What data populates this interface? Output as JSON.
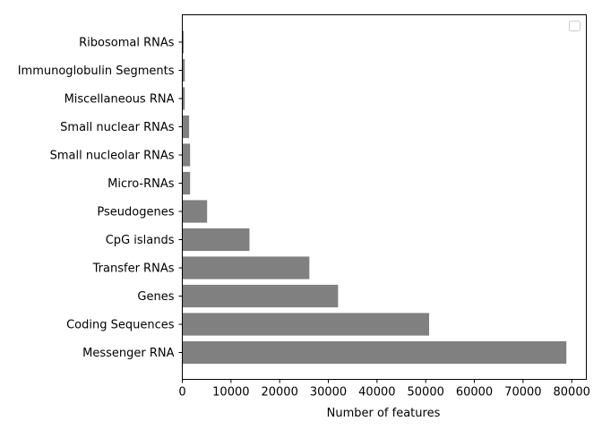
{
  "chart_data": {
    "type": "bar",
    "orientation": "horizontal",
    "categories": [
      "Messenger RNA",
      "Coding Sequences",
      "Genes",
      "Transfer RNAs",
      "CpG islands",
      "Pseudogenes",
      "Micro-RNAs",
      "Small nucleolar RNAs",
      "Small nuclear RNAs",
      "Miscellaneous RNA",
      "Immunoglobulin Segments",
      "Ribosomal RNAs"
    ],
    "values": [
      78900,
      50700,
      32000,
      26100,
      13800,
      5100,
      1600,
      1600,
      1400,
      500,
      500,
      300
    ],
    "xlabel": "Number of features",
    "ylabel": "",
    "title": "",
    "xlim": [
      0,
      83000
    ],
    "xticks": [
      0,
      10000,
      20000,
      30000,
      40000,
      50000,
      60000,
      70000,
      80000
    ],
    "xtick_labels": [
      "0",
      "10000",
      "20000",
      "30000",
      "40000",
      "50000",
      "60000",
      "70000",
      "80000"
    ],
    "bar_color": "#808080",
    "grid": false,
    "legend": {
      "placement": "top-right",
      "entries": []
    }
  }
}
